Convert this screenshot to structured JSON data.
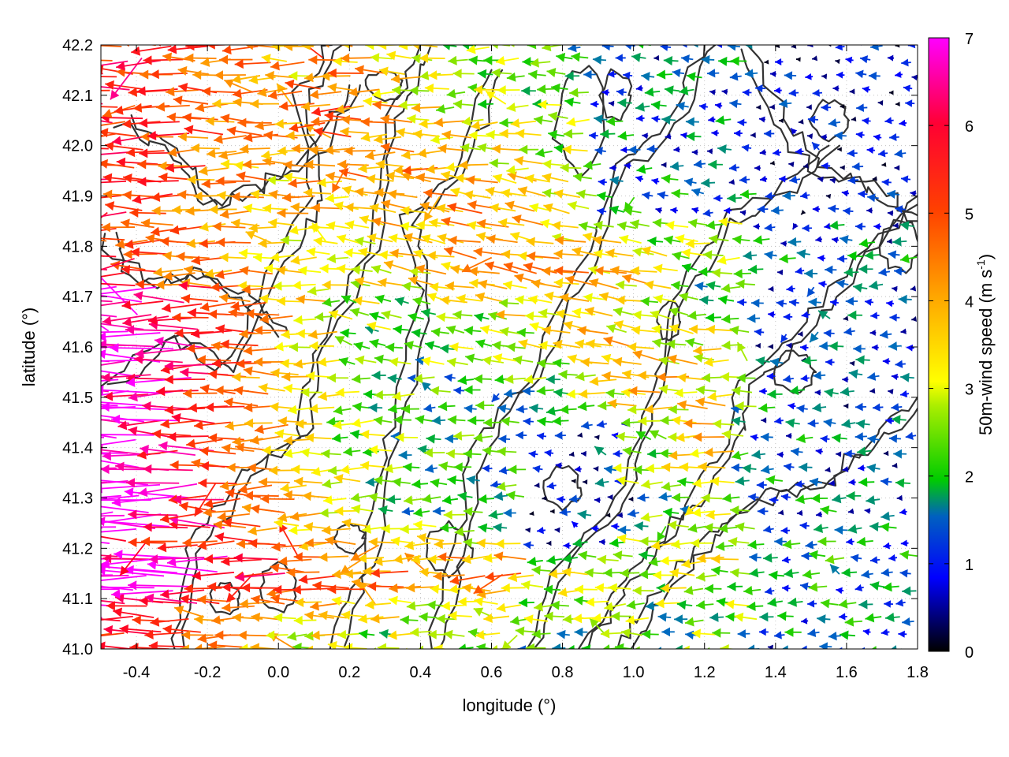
{
  "chart_data": {
    "type": "vector-field",
    "xlabel": "longitude (°)",
    "ylabel": "latitude (°)",
    "xlim": [
      -0.5,
      1.8
    ],
    "ylim": [
      41.0,
      42.2
    ],
    "x_ticks": [
      "-0.4",
      "-0.2",
      "0.0",
      "0.2",
      "0.4",
      "0.6",
      "0.8",
      "1.0",
      "1.2",
      "1.4",
      "1.6",
      "1.8"
    ],
    "y_ticks": [
      "41.0",
      "41.1",
      "41.2",
      "41.3",
      "41.4",
      "41.5",
      "41.6",
      "41.7",
      "41.8",
      "41.9",
      "42.0",
      "42.1",
      "42.2"
    ],
    "grid": true,
    "colorbar": {
      "label": "50m-wind speed (m s",
      "label_exp": "-1",
      "label_close": ")",
      "range": [
        0,
        7
      ],
      "ticks": [
        "0",
        "1",
        "2",
        "3",
        "4",
        "5",
        "6",
        "7"
      ],
      "colors": [
        "#000000",
        "#0000ff",
        "#00cc00",
        "#ffff00",
        "#ffa500",
        "#ff0000",
        "#ff00ff"
      ]
    },
    "wind_direction": "mostly easterly (vectors point west)"
  }
}
